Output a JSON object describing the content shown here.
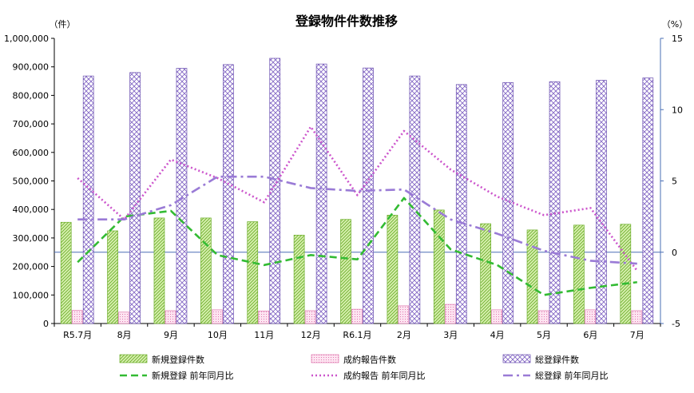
{
  "chart_data": {
    "type": "bar",
    "title": "登録物件件数推移",
    "y_left_unit": "（件）",
    "y_right_unit": "（%）",
    "y_left_range": [
      0,
      1000000
    ],
    "y_right_range": [
      -5,
      15
    ],
    "y_left_ticks": [
      "0",
      "100,000",
      "200,000",
      "300,000",
      "400,000",
      "500,000",
      "600,000",
      "700,000",
      "800,000",
      "900,000",
      "1,000,000"
    ],
    "y_left_tick_values": [
      0,
      100000,
      200000,
      300000,
      400000,
      500000,
      600000,
      700000,
      800000,
      900000,
      1000000
    ],
    "y_right_ticks": [
      "-5",
      "0",
      "5",
      "10",
      "15"
    ],
    "y_right_tick_values": [
      -5,
      0,
      5,
      10,
      15
    ],
    "categories": [
      "R5.7月",
      "8月",
      "9月",
      "10月",
      "11月",
      "12月",
      "R6.1月",
      "2月",
      "3月",
      "4月",
      "5月",
      "6月",
      "7月"
    ],
    "bar_series": [
      {
        "name": "新規登録件数",
        "color": "#92d050",
        "pattern": "diag-green",
        "values": [
          355000,
          325000,
          370000,
          370000,
          357000,
          310000,
          365000,
          380000,
          398000,
          350000,
          328000,
          345000,
          348000
        ]
      },
      {
        "name": "成約報告件数",
        "color": "#ff99cc",
        "pattern": "dots-pink",
        "values": [
          46000,
          40000,
          45000,
          48000,
          44000,
          45000,
          50000,
          62000,
          67000,
          48000,
          45000,
          48000,
          45000
        ]
      },
      {
        "name": "総登録件数",
        "color": "#7f62c3",
        "pattern": "cross-purple",
        "values": [
          868000,
          880000,
          895000,
          908000,
          930000,
          910000,
          896000,
          868000,
          838000,
          845000,
          848000,
          853000,
          861000
        ]
      }
    ],
    "line_series": [
      {
        "name": "新規登録 前年同月比",
        "color": "#33bb33",
        "style": "dashed",
        "values": [
          -0.7,
          2.5,
          2.9,
          -0.2,
          -0.9,
          -0.2,
          -0.5,
          3.8,
          0.2,
          -0.9,
          -3.0,
          -2.5,
          -2.1
        ]
      },
      {
        "name": "成約報告 前年同月比",
        "color": "#cc55cc",
        "style": "dotted",
        "values": [
          5.2,
          2.3,
          6.5,
          5.2,
          3.5,
          8.8,
          4.0,
          8.5,
          5.8,
          3.9,
          2.6,
          3.1,
          -1.3
        ]
      },
      {
        "name": "総登録 前年同月比",
        "color": "#9a7bd6",
        "style": "dashdot",
        "values": [
          2.3,
          2.3,
          3.3,
          5.3,
          5.3,
          4.5,
          4.3,
          4.4,
          2.3,
          1.3,
          0.1,
          -0.6,
          -0.8
        ]
      }
    ],
    "legend_position": "bottom",
    "grid": false
  }
}
